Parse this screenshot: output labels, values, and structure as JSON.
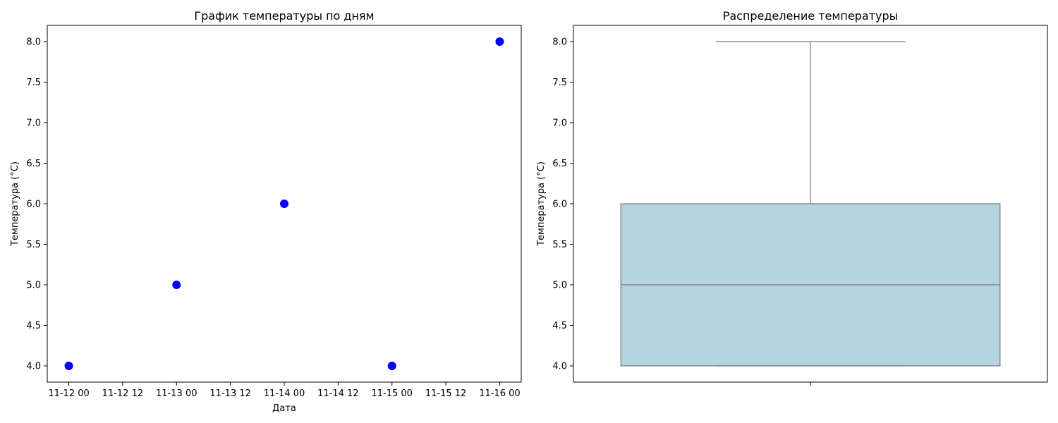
{
  "chart_data": [
    {
      "type": "scatter",
      "title": "График температуры по дням",
      "xlabel": "Дата",
      "ylabel": "Температура (°C)",
      "x": [
        "2023-11-12",
        "2023-11-13",
        "2023-11-14",
        "2023-11-15",
        "2023-11-16"
      ],
      "y": [
        4,
        5,
        6,
        4,
        8
      ],
      "xticks": [
        "11-12 00",
        "11-12 12",
        "11-13 00",
        "11-13 12",
        "11-14 00",
        "11-14 12",
        "11-15 00",
        "11-15 12",
        "11-16 00"
      ],
      "yticks": [
        "4.0",
        "4.5",
        "5.0",
        "5.5",
        "6.0",
        "6.5",
        "7.0",
        "7.5",
        "8.0"
      ],
      "ylim": [
        3.8,
        8.2
      ],
      "grid": false,
      "marker_color": "#0000ff"
    },
    {
      "type": "box",
      "title": "Распределение температуры",
      "xlabel": "",
      "ylabel": "Температура (°C)",
      "values": [
        4,
        5,
        6,
        4,
        8
      ],
      "stats": {
        "min": 4,
        "q1": 4,
        "median": 5,
        "q3": 6,
        "max": 8
      },
      "yticks": [
        "4.0",
        "4.5",
        "5.0",
        "5.5",
        "6.0",
        "6.5",
        "7.0",
        "7.5",
        "8.0"
      ],
      "ylim": [
        3.8,
        8.2
      ],
      "grid": false,
      "box_color": "#b4d5e0",
      "line_color": "#777777"
    }
  ]
}
